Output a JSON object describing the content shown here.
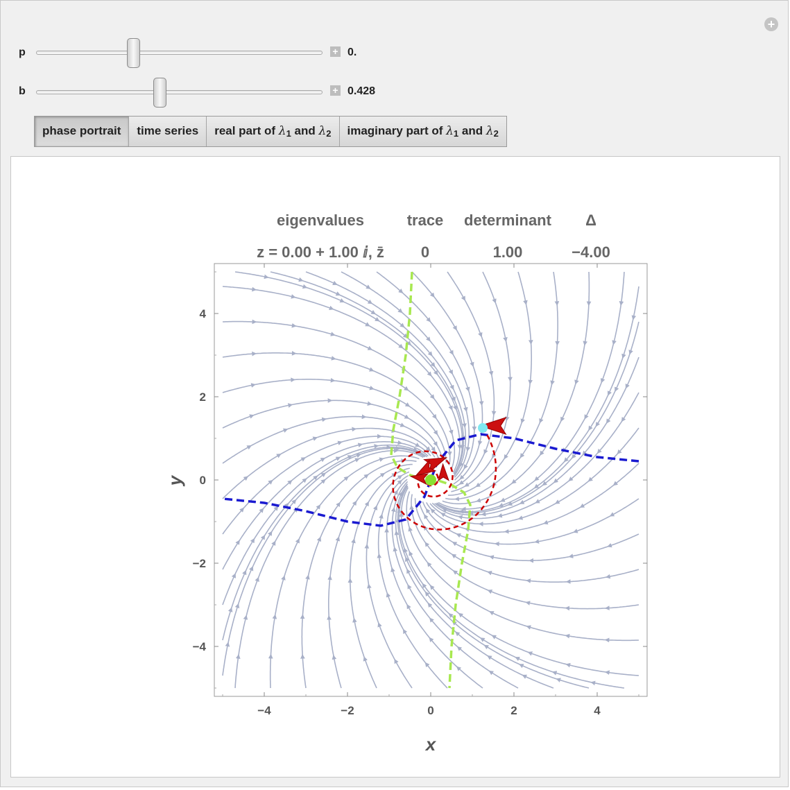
{
  "controls": {
    "p": {
      "label": "p",
      "value_text": "0.",
      "position": 0.34
    },
    "b": {
      "label": "b",
      "value_text": "0.428",
      "position": 0.43
    }
  },
  "tabs": [
    {
      "label": "phase portrait",
      "active": true
    },
    {
      "label": "time series",
      "active": false
    },
    {
      "label_html": "real part of <i>λ</i><sub>1</sub> and <i>λ</i><sub>2</sub>",
      "label": "real part of λ1 and λ2",
      "active": false
    },
    {
      "label_html": "imaginary part of <i>λ</i><sub>1</sub> and <i>λ</i><sub>2</sub>",
      "label": "imaginary part of λ1 and λ2",
      "active": false
    }
  ],
  "info_header": {
    "labels": [
      "eigenvalues",
      "trace",
      "determinant",
      "Δ"
    ],
    "values": [
      "z = 0.00 + 1.00 ⅈ, z̄",
      "0",
      "1.00",
      "−4.00"
    ]
  },
  "chart_data": {
    "type": "scatter",
    "xlabel": "x",
    "ylabel": "y",
    "xlim": [
      -5.2,
      5.2
    ],
    "ylim": [
      -5.2,
      5.2
    ],
    "xticks": [
      -4,
      -2,
      0,
      2,
      4
    ],
    "yticks": [
      -4,
      -2,
      0,
      2,
      4
    ],
    "xtick_labels": [
      "−4",
      "−2",
      "0",
      "2",
      "4"
    ],
    "ytick_labels": [
      "−4",
      "−2",
      "0",
      "2",
      "4"
    ],
    "stream_color": "#a8b0c8",
    "equilibrium": {
      "x": 0.0,
      "y": 0.0,
      "color": "#88e030"
    },
    "initial_point": {
      "x": 1.25,
      "y": 1.25,
      "color": "#7fe8f0"
    },
    "nullcline_green": {
      "color": "#a8e850",
      "points": [
        [
          -0.45,
          5.0
        ],
        [
          -0.5,
          4.0
        ],
        [
          -0.6,
          3.0
        ],
        [
          -0.75,
          2.0
        ],
        [
          -0.9,
          1.2
        ],
        [
          -0.95,
          0.6
        ],
        [
          -0.8,
          0.3
        ],
        [
          -0.5,
          0.12
        ],
        [
          -0.2,
          0.02
        ]
      ]
    },
    "nullcline_green_2": {
      "color": "#a8e850",
      "points": [
        [
          0.2,
          -0.02
        ],
        [
          0.5,
          -0.12
        ],
        [
          0.8,
          -0.3
        ],
        [
          0.95,
          -0.6
        ],
        [
          0.9,
          -1.2
        ],
        [
          0.75,
          -2.0
        ],
        [
          0.6,
          -3.0
        ],
        [
          0.5,
          -4.0
        ],
        [
          0.45,
          -5.0
        ]
      ]
    },
    "nullcline_blue": {
      "color": "#1a1ad0",
      "points": [
        [
          5.0,
          0.45
        ],
        [
          4.0,
          0.55
        ],
        [
          3.0,
          0.75
        ],
        [
          2.0,
          1.0
        ],
        [
          1.2,
          1.1
        ],
        [
          0.6,
          0.95
        ],
        [
          0.15,
          0.4
        ],
        [
          0.0,
          0.0
        ]
      ]
    },
    "nullcline_blue_2": {
      "color": "#1a1ad0",
      "points": [
        [
          0.0,
          0.0
        ],
        [
          -0.15,
          -0.4
        ],
        [
          -0.6,
          -0.95
        ],
        [
          -1.2,
          -1.1
        ],
        [
          -2.0,
          -1.0
        ],
        [
          -3.0,
          -0.75
        ],
        [
          -4.0,
          -0.55
        ],
        [
          -5.0,
          -0.45
        ]
      ]
    },
    "trajectory": {
      "color": "#cc0000"
    }
  }
}
